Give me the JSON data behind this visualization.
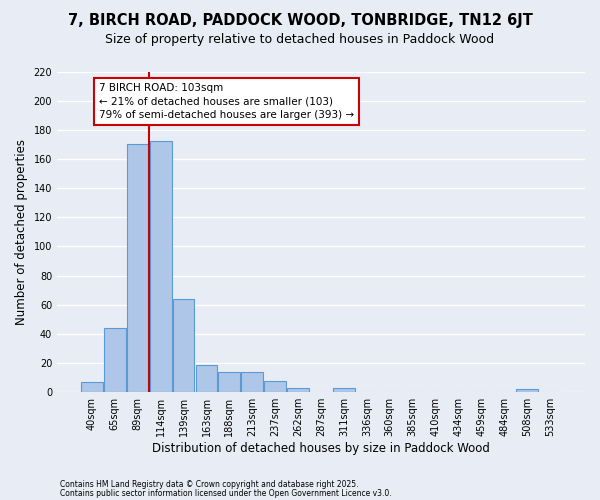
{
  "title": "7, BIRCH ROAD, PADDOCK WOOD, TONBRIDGE, TN12 6JT",
  "subtitle": "Size of property relative to detached houses in Paddock Wood",
  "xlabel": "Distribution of detached houses by size in Paddock Wood",
  "ylabel": "Number of detached properties",
  "categories": [
    "40sqm",
    "65sqm",
    "89sqm",
    "114sqm",
    "139sqm",
    "163sqm",
    "188sqm",
    "213sqm",
    "237sqm",
    "262sqm",
    "287sqm",
    "311sqm",
    "336sqm",
    "360sqm",
    "385sqm",
    "410sqm",
    "434sqm",
    "459sqm",
    "484sqm",
    "508sqm",
    "533sqm"
  ],
  "values": [
    7,
    44,
    170,
    172,
    64,
    19,
    14,
    14,
    8,
    3,
    0,
    3,
    0,
    0,
    0,
    0,
    0,
    0,
    0,
    2,
    0
  ],
  "bar_color": "#aec6e8",
  "bar_edge_color": "#5b9bd5",
  "background_color": "#e8edf5",
  "grid_color": "#ffffff",
  "vline_color": "#cc0000",
  "annotation_line1": "7 BIRCH ROAD: 103sqm",
  "annotation_line2": "← 21% of detached houses are smaller (103)",
  "annotation_line3": "79% of semi-detached houses are larger (393) →",
  "annotation_box_color": "#ffffff",
  "annotation_border_color": "#cc0000",
  "ylim": [
    0,
    220
  ],
  "yticks": [
    0,
    20,
    40,
    60,
    80,
    100,
    120,
    140,
    160,
    180,
    200,
    220
  ],
  "footer1": "Contains HM Land Registry data © Crown copyright and database right 2025.",
  "footer2": "Contains public sector information licensed under the Open Government Licence v3.0.",
  "title_fontsize": 10.5,
  "subtitle_fontsize": 9,
  "tick_fontsize": 7,
  "ylabel_fontsize": 8.5,
  "xlabel_fontsize": 8.5,
  "annotation_fontsize": 7.5,
  "footer_fontsize": 5.5
}
